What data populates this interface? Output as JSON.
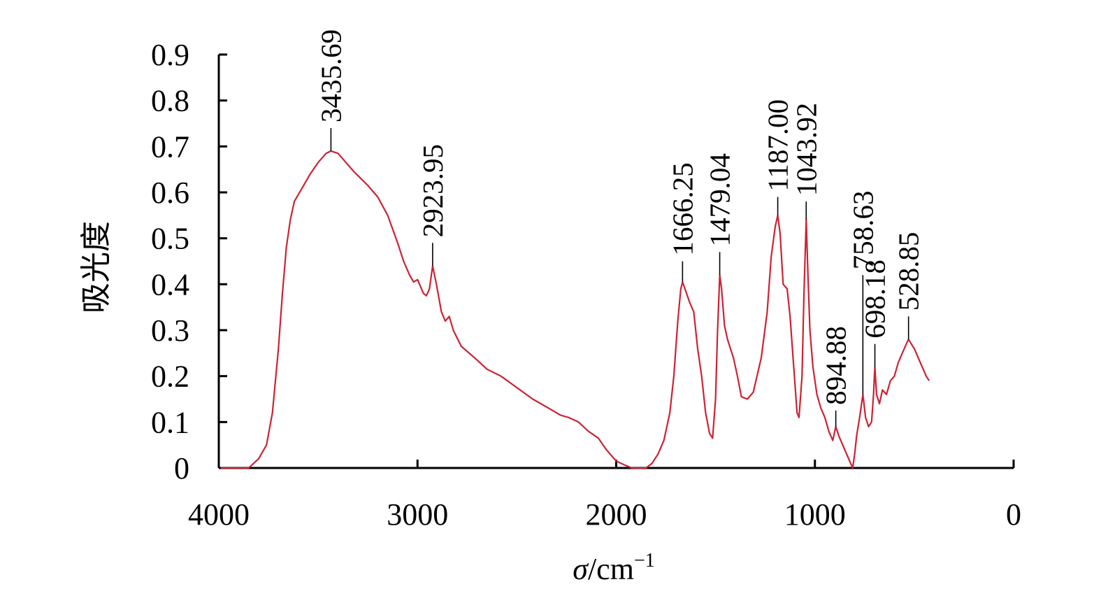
{
  "chart_data": {
    "type": "line",
    "ylabel": "吸光度",
    "xlabel_symbol": "σ",
    "xlabel_unit": "/cm",
    "xlabel_superscript": "−1",
    "xlim": [
      4000,
      0
    ],
    "ylim": [
      0,
      0.9
    ],
    "x_ticks": [
      "4000",
      "3000",
      "2000",
      "1000",
      "0"
    ],
    "y_ticks": [
      "0",
      "0.1",
      "0.2",
      "0.3",
      "0.4",
      "0.5",
      "0.6",
      "0.7",
      "0.8",
      "0.9"
    ],
    "line_color": "#cc2233",
    "grid": false,
    "peaks": [
      {
        "label": "3435.69",
        "x": 3435.69,
        "y": 0.69,
        "top": 0.74
      },
      {
        "label": "2923.95",
        "x": 2923.95,
        "y": 0.44,
        "top": 0.49
      },
      {
        "label": "1666.25",
        "x": 1666.25,
        "y": 0.405,
        "top": 0.45
      },
      {
        "label": "1479.04",
        "x": 1479.04,
        "y": 0.42,
        "top": 0.47
      },
      {
        "label": "1187.00",
        "x": 1187.0,
        "y": 0.55,
        "top": 0.59
      },
      {
        "label": "1043.92",
        "x": 1043.92,
        "y": 0.54,
        "top": 0.58
      },
      {
        "label": "894.88",
        "x": 894.88,
        "y": 0.09,
        "top": 0.125
      },
      {
        "label": "758.63",
        "x": 758.63,
        "y": 0.16,
        "top": 0.42
      },
      {
        "label": "698.18",
        "x": 698.18,
        "y": 0.22,
        "top": 0.27
      },
      {
        "label": "528.85",
        "x": 528.85,
        "y": 0.28,
        "top": 0.33
      }
    ],
    "series": [
      {
        "points": [
          [
            3990,
            0.0
          ],
          [
            3850,
            0.0
          ],
          [
            3800,
            0.02
          ],
          [
            3760,
            0.05
          ],
          [
            3730,
            0.12
          ],
          [
            3700,
            0.26
          ],
          [
            3680,
            0.38
          ],
          [
            3660,
            0.48
          ],
          [
            3640,
            0.54
          ],
          [
            3620,
            0.58
          ],
          [
            3580,
            0.61
          ],
          [
            3540,
            0.64
          ],
          [
            3500,
            0.665
          ],
          [
            3460,
            0.685
          ],
          [
            3435.69,
            0.69
          ],
          [
            3400,
            0.685
          ],
          [
            3360,
            0.665
          ],
          [
            3320,
            0.645
          ],
          [
            3250,
            0.615
          ],
          [
            3200,
            0.59
          ],
          [
            3150,
            0.55
          ],
          [
            3100,
            0.49
          ],
          [
            3070,
            0.45
          ],
          [
            3040,
            0.42
          ],
          [
            3020,
            0.405
          ],
          [
            3000,
            0.41
          ],
          [
            2985,
            0.395
          ],
          [
            2970,
            0.38
          ],
          [
            2955,
            0.375
          ],
          [
            2940,
            0.39
          ],
          [
            2923.95,
            0.44
          ],
          [
            2905,
            0.4
          ],
          [
            2880,
            0.34
          ],
          [
            2860,
            0.32
          ],
          [
            2840,
            0.33
          ],
          [
            2820,
            0.3
          ],
          [
            2780,
            0.265
          ],
          [
            2740,
            0.25
          ],
          [
            2700,
            0.235
          ],
          [
            2650,
            0.215
          ],
          [
            2580,
            0.2
          ],
          [
            2500,
            0.175
          ],
          [
            2420,
            0.15
          ],
          [
            2340,
            0.13
          ],
          [
            2280,
            0.115
          ],
          [
            2240,
            0.11
          ],
          [
            2190,
            0.1
          ],
          [
            2140,
            0.08
          ],
          [
            2090,
            0.065
          ],
          [
            2050,
            0.04
          ],
          [
            2000,
            0.015
          ],
          [
            1950,
            0.005
          ],
          [
            1920,
            0.0
          ],
          [
            1880,
            0.0
          ],
          [
            1850,
            0.0
          ],
          [
            1820,
            0.01
          ],
          [
            1790,
            0.03
          ],
          [
            1760,
            0.06
          ],
          [
            1730,
            0.12
          ],
          [
            1710,
            0.2
          ],
          [
            1690,
            0.32
          ],
          [
            1675,
            0.39
          ],
          [
            1666.25,
            0.405
          ],
          [
            1650,
            0.385
          ],
          [
            1630,
            0.36
          ],
          [
            1610,
            0.34
          ],
          [
            1590,
            0.26
          ],
          [
            1570,
            0.2
          ],
          [
            1550,
            0.12
          ],
          [
            1530,
            0.075
          ],
          [
            1515,
            0.065
          ],
          [
            1500,
            0.15
          ],
          [
            1490,
            0.3
          ],
          [
            1479.04,
            0.42
          ],
          [
            1470,
            0.39
          ],
          [
            1455,
            0.31
          ],
          [
            1440,
            0.28
          ],
          [
            1425,
            0.26
          ],
          [
            1410,
            0.24
          ],
          [
            1390,
            0.2
          ],
          [
            1370,
            0.155
          ],
          [
            1340,
            0.15
          ],
          [
            1310,
            0.165
          ],
          [
            1270,
            0.24
          ],
          [
            1240,
            0.34
          ],
          [
            1220,
            0.46
          ],
          [
            1200,
            0.525
          ],
          [
            1187.0,
            0.55
          ],
          [
            1175,
            0.51
          ],
          [
            1160,
            0.4
          ],
          [
            1140,
            0.39
          ],
          [
            1125,
            0.33
          ],
          [
            1110,
            0.24
          ],
          [
            1090,
            0.12
          ],
          [
            1080,
            0.11
          ],
          [
            1065,
            0.2
          ],
          [
            1055,
            0.38
          ],
          [
            1043.92,
            0.54
          ],
          [
            1035,
            0.42
          ],
          [
            1025,
            0.3
          ],
          [
            1010,
            0.22
          ],
          [
            990,
            0.16
          ],
          [
            970,
            0.13
          ],
          [
            950,
            0.11
          ],
          [
            930,
            0.08
          ],
          [
            910,
            0.06
          ],
          [
            894.88,
            0.09
          ],
          [
            880,
            0.07
          ],
          [
            860,
            0.05
          ],
          [
            840,
            0.03
          ],
          [
            820,
            0.01
          ],
          [
            810,
            0.0
          ],
          [
            800,
            0.03
          ],
          [
            790,
            0.07
          ],
          [
            775,
            0.11
          ],
          [
            758.63,
            0.16
          ],
          [
            745,
            0.11
          ],
          [
            730,
            0.09
          ],
          [
            715,
            0.1
          ],
          [
            705,
            0.16
          ],
          [
            698.18,
            0.22
          ],
          [
            690,
            0.16
          ],
          [
            675,
            0.14
          ],
          [
            660,
            0.17
          ],
          [
            640,
            0.16
          ],
          [
            620,
            0.19
          ],
          [
            600,
            0.2
          ],
          [
            580,
            0.23
          ],
          [
            560,
            0.25
          ],
          [
            540,
            0.27
          ],
          [
            528.85,
            0.28
          ],
          [
            515,
            0.27
          ],
          [
            500,
            0.26
          ],
          [
            485,
            0.245
          ],
          [
            470,
            0.23
          ],
          [
            455,
            0.215
          ],
          [
            440,
            0.2
          ],
          [
            425,
            0.19
          ]
        ]
      }
    ]
  }
}
